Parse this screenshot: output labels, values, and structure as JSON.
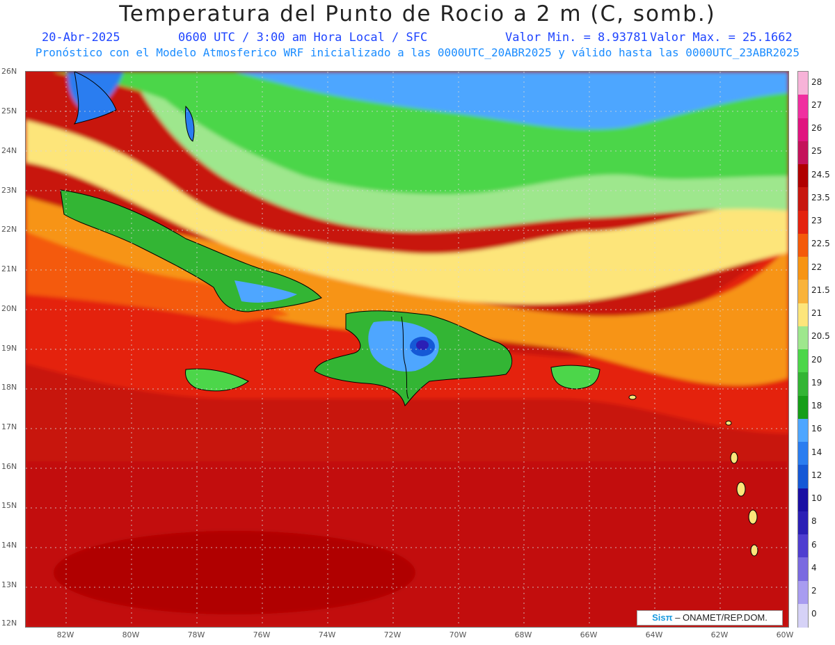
{
  "header": {
    "title": "Temperatura del Punto de Rocio a 2 m (C, somb.)",
    "date": "20-Abr-2025",
    "time": "0600 UTC / 3:00 am Hora Local / SFC",
    "min_label": "Valor Min. = 8.93781",
    "max_label": "Valor Max. = 25.1662",
    "subtitle": "Pronóstico con el Modelo Atmosferico WRF inicializado a las 0000UTC_20ABR2025 y válido hasta las  0000UTC_23ABR2025"
  },
  "map": {
    "lat_labels": [
      "26N",
      "25N",
      "24N",
      "23N",
      "22N",
      "21N",
      "20N",
      "19N",
      "18N",
      "17N",
      "16N",
      "15N",
      "14N",
      "13N",
      "12N"
    ],
    "lon_labels": [
      "82W",
      "80W",
      "78W",
      "76W",
      "74W",
      "72W",
      "70W",
      "68W",
      "66W",
      "64W",
      "62W",
      "60W"
    ]
  },
  "colorbar": {
    "labels": [
      "28",
      "27",
      "26",
      "25",
      "24.5",
      "23.5",
      "23",
      "22.5",
      "22",
      "21.5",
      "21",
      "20.5",
      "20",
      "19",
      "18",
      "16",
      "14",
      "12",
      "10",
      "8",
      "6",
      "4",
      "2",
      "0"
    ],
    "colors": [
      "#f7b3d8",
      "#f02fa0",
      "#e0147f",
      "#c4125a",
      "#b00000",
      "#c8170f",
      "#e4230e",
      "#f45a0a",
      "#f79413",
      "#f9b33a",
      "#fde57a",
      "#9ee78d",
      "#4cd64a",
      "#33b534",
      "#169e18",
      "#4ea6ff",
      "#2a7df0",
      "#1558d6",
      "#1a0fa3",
      "#2b1fb5",
      "#4f3ed0",
      "#7a6ae0",
      "#a89cf0",
      "#d6d2f7"
    ]
  },
  "credit": {
    "logo": "Sisπ",
    "text": "– ONAMET/REP.DOM."
  }
}
